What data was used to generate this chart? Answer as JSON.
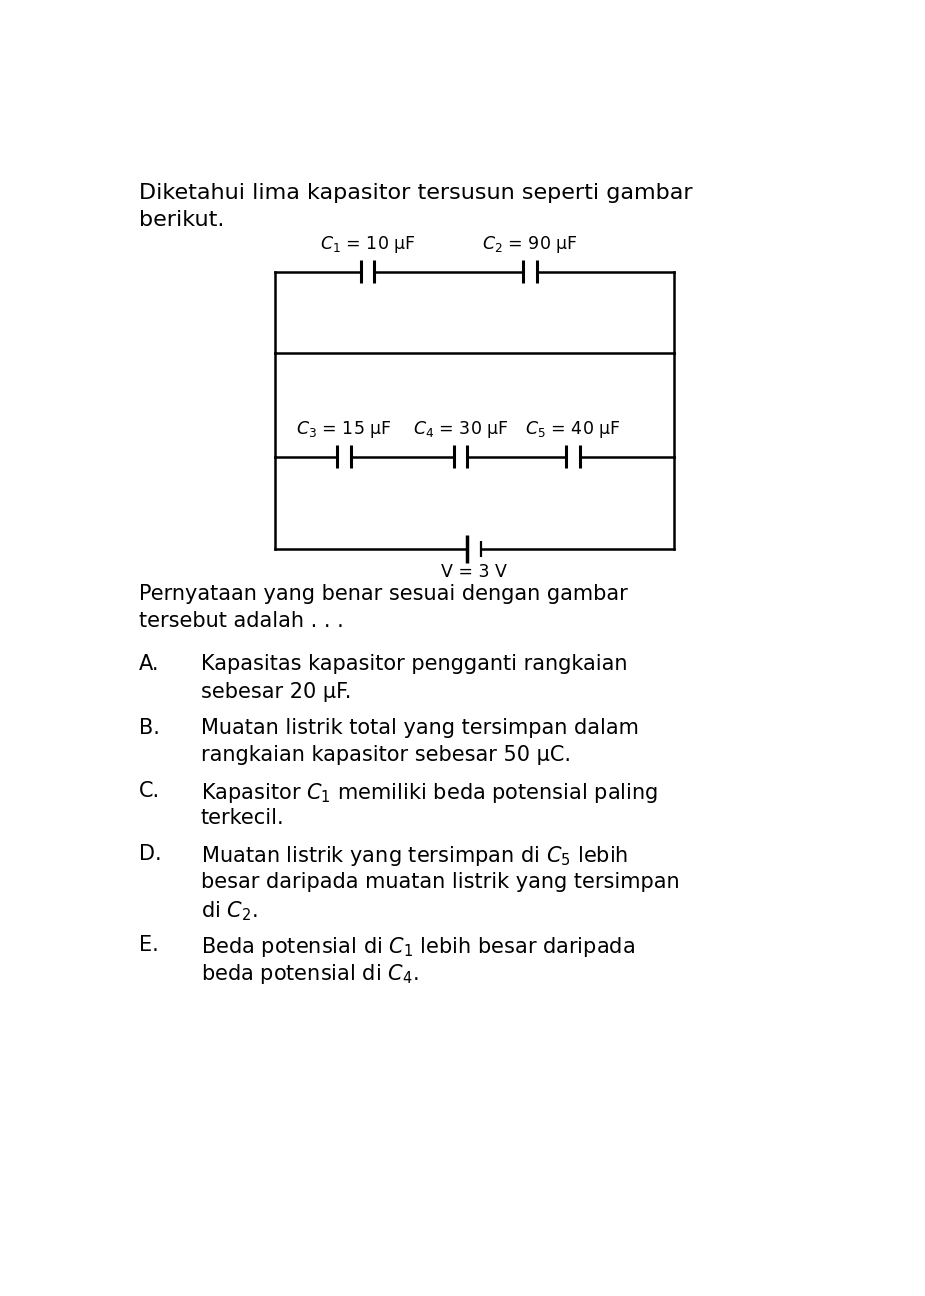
{
  "title_line1": "Diketahui lima kapasitor tersusun seperti gambar",
  "title_line2": "berikut.",
  "cap_labels": {
    "C1": "$C_1$ = 10 μF",
    "C2": "$C_2$ = 90 μF",
    "C3": "$C_3$ = 15 μF  $C_4$ = 30 μF  $C_5$ = 40 μF",
    "C3only": "$C_3$ = 15 μF",
    "C4only": "$C_4$ = 30 μF",
    "C5only": "$C_5$ = 40 μF"
  },
  "voltage_label": "V = 3 V",
  "question": "Pernyataan yang benar sesuai dengan gambar\ntersebut adalah . . .",
  "options": [
    {
      "letter": "A.",
      "text": "Kapasitas kapasitor pengganti rangkaian\nsebesar 20 μF."
    },
    {
      "letter": "B.",
      "text": "Muatan listrik total yang tersimpan dalam\nrangkaian kapasitor sebesar 50 μC."
    },
    {
      "letter": "C.",
      "text": "Kapasitor $C_1$ memiliki beda potensial paling\nterkecil."
    },
    {
      "letter": "D.",
      "text": "Muatan listrik yang tersimpan di $C_5$ lebih\nbesar daripada muatan listrik yang tersimpan\ndi $C_2$."
    },
    {
      "letter": "E.",
      "text": "Beda potensial di $C_1$ lebih besar daripada\nbeda potensial di $C_4$."
    }
  ],
  "bg_color": "#ffffff",
  "text_color": "#000000",
  "line_color": "#000000",
  "lw": 1.8,
  "lw_cap": 2.2,
  "font_size_title": 16,
  "font_size_body": 15,
  "font_size_circuit": 12.5
}
